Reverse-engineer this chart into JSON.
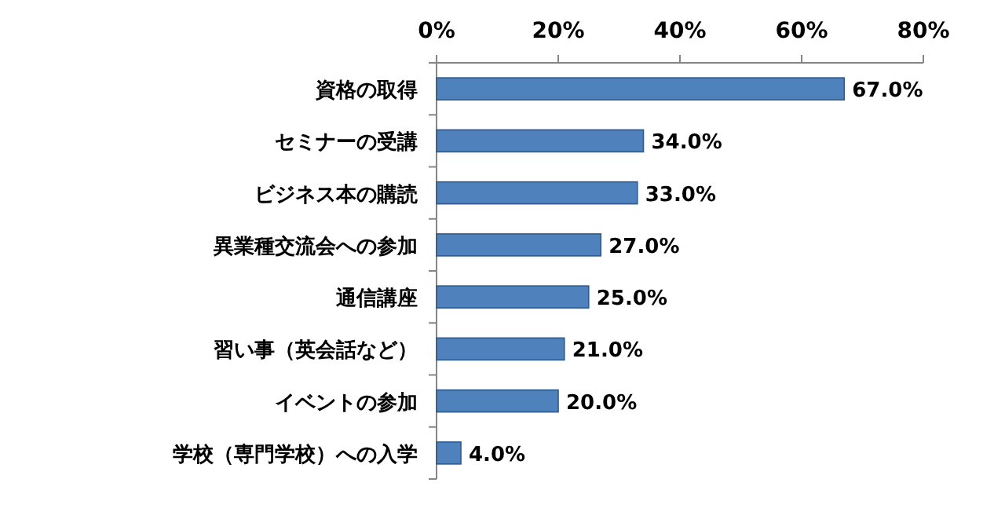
{
  "chart_data": {
    "type": "bar",
    "orientation": "horizontal",
    "color": "#4f81bd",
    "categories": [
      "資格の取得",
      "セミナーの受講",
      "ビジネス本の購読",
      "異業種交流会への参加",
      "通信講座",
      "習い事（英会話など）",
      "イベントの参加",
      "学校（専門学校）への入学"
    ],
    "values": [
      67,
      34,
      33,
      27,
      25,
      21,
      20,
      4
    ],
    "value_labels": [
      "67.0%",
      "34.0%",
      "33.0%",
      "27.0%",
      "25.0%",
      "21.0%",
      "20.0%",
      "4.0%"
    ],
    "xlim": [
      0,
      80
    ],
    "xticks": [
      {
        "value": 0,
        "label": "0%"
      },
      {
        "value": 20,
        "label": "20%"
      },
      {
        "value": 40,
        "label": "40%"
      },
      {
        "value": 60,
        "label": "60%"
      },
      {
        "value": 80,
        "label": "80%"
      }
    ]
  }
}
